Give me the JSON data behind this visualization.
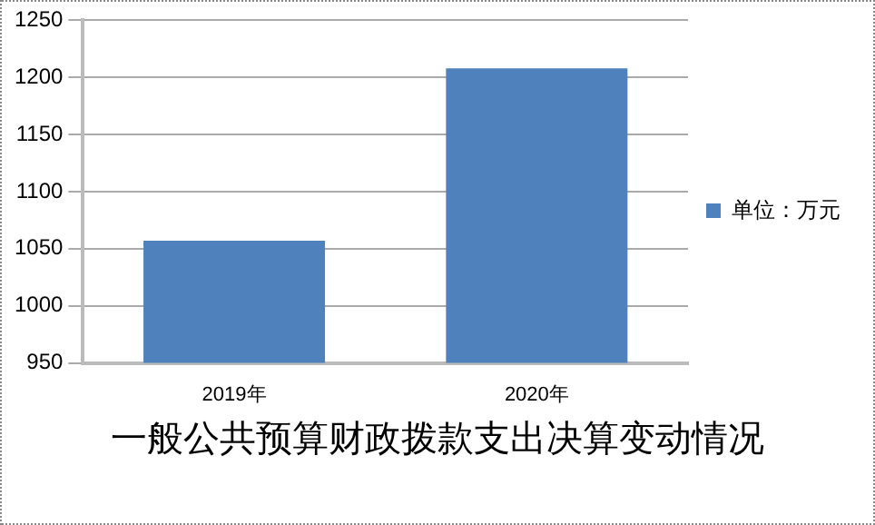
{
  "chart_data": {
    "type": "bar",
    "title": "一般公共预算财政拨款支出决算变动情况",
    "categories": [
      "2019年",
      "2020年"
    ],
    "series": [
      {
        "name": "单位：万元",
        "color": "#4f81bd",
        "values": [
          1057,
          1208
        ]
      }
    ],
    "ylim": [
      950,
      1250
    ],
    "yticks": [
      950,
      1000,
      1050,
      1100,
      1150,
      1200,
      1250
    ],
    "grid": "y",
    "legend": "right"
  }
}
